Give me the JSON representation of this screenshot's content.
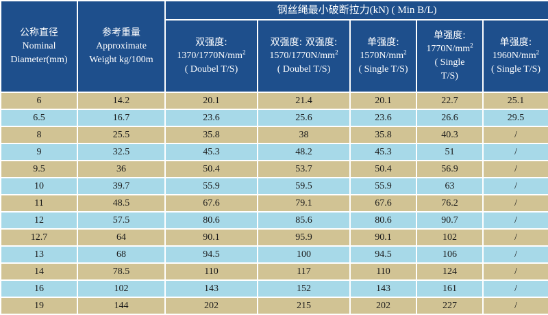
{
  "table": {
    "title": "钢丝绳最小破断拉力(kN) ( Min B/L)",
    "col_diameter": {
      "cn": "公称直径",
      "en1": "Nominal",
      "en2": "Diameter(mm)"
    },
    "col_weight": {
      "cn": "参考重量",
      "en1": "Approximate",
      "en2": "Weight kg/100m"
    },
    "col_strength": [
      {
        "cn": "双强度:",
        "line1": "1370/1770N/mm",
        "sup": "2",
        "line2": "( Doubel T/S)"
      },
      {
        "cn": "双强度: 双强度:",
        "line1": "1570/1770N/mm",
        "sup": "2",
        "line2": "( Doubel T/S)"
      },
      {
        "cn": "单强度:",
        "line1": "1570N/mm",
        "sup": "2",
        "line2": "( Single T/S)"
      },
      {
        "cn": "单强度:",
        "line1": "1770N/mm",
        "sup": "2",
        "line2": "( Single",
        "line3": "T/S)"
      },
      {
        "cn": "单强度:",
        "line1": "1960N/mm",
        "sup": "2",
        "line2": "( Single T/S)"
      }
    ],
    "rows": [
      [
        "6",
        "14.2",
        "20.1",
        "21.4",
        "20.1",
        "22.7",
        "25.1"
      ],
      [
        "6.5",
        "16.7",
        "23.6",
        "25.6",
        "23.6",
        "26.6",
        "29.5"
      ],
      [
        "8",
        "25.5",
        "35.8",
        "38",
        "35.8",
        "40.3",
        "/"
      ],
      [
        "9",
        "32.5",
        "45.3",
        "48.2",
        "45.3",
        "51",
        "/"
      ],
      [
        "9.5",
        "36",
        "50.4",
        "53.7",
        "50.4",
        "56.9",
        "/"
      ],
      [
        "10",
        "39.7",
        "55.9",
        "59.5",
        "55.9",
        "63",
        "/"
      ],
      [
        "11",
        "48.5",
        "67.6",
        "79.1",
        "67.6",
        "76.2",
        "/"
      ],
      [
        "12",
        "57.5",
        "80.6",
        "85.6",
        "80.6",
        "90.7",
        "/"
      ],
      [
        "12.7",
        "64",
        "90.1",
        "95.9",
        "90.1",
        "102",
        "/"
      ],
      [
        "13",
        "68",
        "94.5",
        "100",
        "94.5",
        "106",
        "/"
      ],
      [
        "14",
        "78.5",
        "110",
        "117",
        "110",
        "124",
        "/"
      ],
      [
        "16",
        "102",
        "143",
        "152",
        "143",
        "161",
        "/"
      ],
      [
        "19",
        "144",
        "202",
        "215",
        "202",
        "227",
        "/"
      ]
    ],
    "colors": {
      "header_bg": "#1e4f8c",
      "row_tan": "#d1c394",
      "row_blue": "#a7d9e8"
    }
  }
}
